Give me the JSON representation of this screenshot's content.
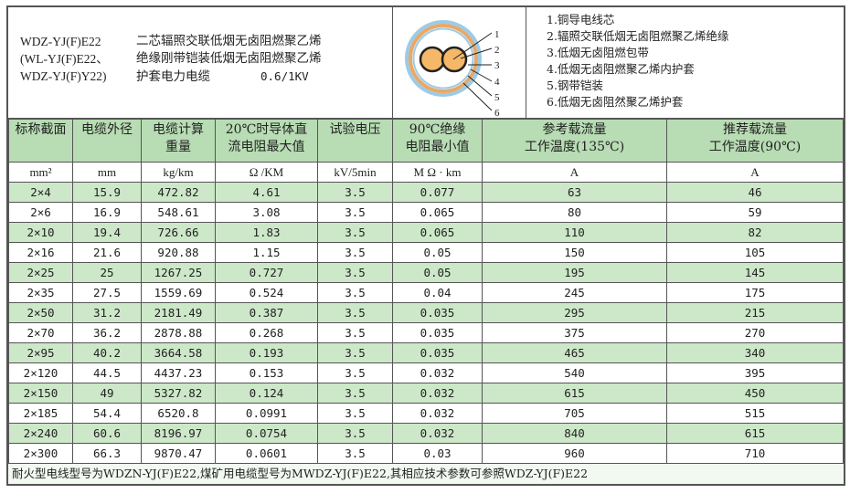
{
  "header": {
    "model_codes": [
      "WDZ-YJ(F)E22",
      "(WL-YJ(F)E22、",
      "WDZ-YJ(F)Y22)"
    ],
    "description": [
      "二芯辐照交联低烟无卤阻燃聚乙烯",
      "绝缘刚带铠装低烟无卤阻燃聚乙烯",
      "护套电力电缆"
    ],
    "voltage": "0.6/1KV"
  },
  "diagram": {
    "labels": [
      "1",
      "2",
      "3",
      "4",
      "5",
      "6"
    ],
    "colors": {
      "conductor": "#f5b868",
      "insulation_ring": "#e8a868",
      "outer_ring": "#9ccbe6"
    }
  },
  "legend": [
    "1.铜导电线芯",
    "2.辐照交联低烟无卤阻燃聚乙烯绝缘",
    "3.低烟无卤阻燃包带",
    "4.低烟无卤阻燃聚乙烯内护套",
    "5.钢带铠装",
    "6.低烟无卤阻然聚乙烯护套"
  ],
  "table": {
    "headers": [
      [
        "标称截面"
      ],
      [
        "电缆外径"
      ],
      [
        "电缆计算",
        "重量"
      ],
      [
        "20℃时导体直",
        "流电阻最大值"
      ],
      [
        "试验电压"
      ],
      [
        "90℃绝缘",
        "电阻最小值"
      ],
      [
        "参考载流量",
        "工作温度(135℃)"
      ],
      [
        "推荐载流量",
        "工作温度(90℃)"
      ]
    ],
    "units": [
      "mm²",
      "mm",
      "kg/km",
      "Ω /KM",
      "kV/5min",
      "M Ω · km",
      "A",
      "A"
    ],
    "rows": [
      [
        "2×4",
        "15.9",
        "472.82",
        "4.61",
        "3.5",
        "0.077",
        "63",
        "46"
      ],
      [
        "2×6",
        "16.9",
        "548.61",
        "3.08",
        "3.5",
        "0.065",
        "80",
        "59"
      ],
      [
        "2×10",
        "19.4",
        "726.66",
        "1.83",
        "3.5",
        "0.065",
        "110",
        "82"
      ],
      [
        "2×16",
        "21.6",
        "920.88",
        "1.15",
        "3.5",
        "0.05",
        "150",
        "105"
      ],
      [
        "2×25",
        "25",
        "1267.25",
        "0.727",
        "3.5",
        "0.05",
        "195",
        "145"
      ],
      [
        "2×35",
        "27.5",
        "1559.69",
        "0.524",
        "3.5",
        "0.04",
        "245",
        "175"
      ],
      [
        "2×50",
        "31.2",
        "2181.49",
        "0.387",
        "3.5",
        "0.035",
        "295",
        "215"
      ],
      [
        "2×70",
        "36.2",
        "2878.88",
        "0.268",
        "3.5",
        "0.035",
        "375",
        "270"
      ],
      [
        "2×95",
        "40.2",
        "3664.58",
        "0.193",
        "3.5",
        "0.035",
        "465",
        "340"
      ],
      [
        "2×120",
        "44.5",
        "4437.23",
        "0.153",
        "3.5",
        "0.032",
        "540",
        "395"
      ],
      [
        "2×150",
        "49",
        "5327.82",
        "0.124",
        "3.5",
        "0.032",
        "615",
        "450"
      ],
      [
        "2×185",
        "54.4",
        "6520.8",
        "0.0991",
        "3.5",
        "0.032",
        "705",
        "515"
      ],
      [
        "2×240",
        "60.6",
        "8196.97",
        "0.0754",
        "3.5",
        "0.032",
        "840",
        "615"
      ],
      [
        "2×300",
        "66.3",
        "9870.47",
        "0.0601",
        "3.5",
        "0.03",
        "960",
        "710"
      ]
    ],
    "footnote": "耐火型电线型号为WDZN-YJ(F)E22,煤矿用电缆型号为MWDZ-YJ(F)E22,其相应技术参数可参照WDZ-YJ(F)E22"
  },
  "colors": {
    "header_bg": "#b8dcb4",
    "stripe_bg": "#cde7c9"
  }
}
